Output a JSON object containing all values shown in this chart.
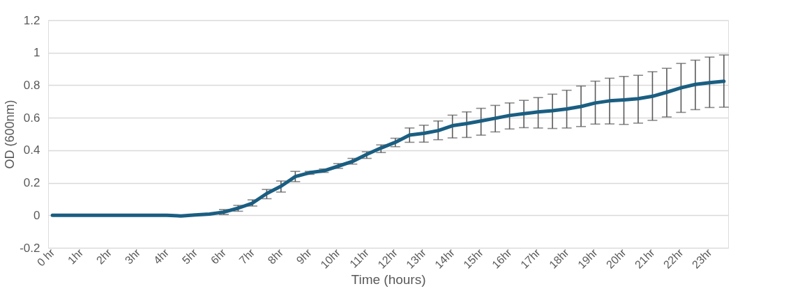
{
  "chart_data": {
    "type": "line",
    "xlabel": "Time (hours)",
    "ylabel": "OD (600nm)",
    "categories": [
      "0 hr",
      null,
      "1hr",
      null,
      "2hr",
      null,
      "3hr",
      null,
      "4hr",
      null,
      "5hr",
      null,
      "6hr",
      null,
      "7hr",
      null,
      "8hr",
      null,
      "9hr",
      null,
      "10hr",
      null,
      "11hr",
      null,
      "12hr",
      null,
      "13hr",
      null,
      "14hr",
      null,
      "15hr",
      null,
      "16hr",
      null,
      "17hr",
      null,
      "18hr",
      null,
      "19hr",
      null,
      "20hr",
      null,
      "21hr",
      null,
      "22hr",
      null,
      "23hr",
      null
    ],
    "series": [
      {
        "color": "#1a5e82",
        "values": [
          0,
          0,
          0,
          0,
          0,
          0,
          0,
          0,
          0,
          -0.004,
          0.002,
          0.008,
          0.02,
          0.044,
          0.075,
          0.134,
          0.179,
          0.238,
          0.262,
          0.274,
          0.302,
          0.331,
          0.375,
          0.414,
          0.449,
          0.494,
          0.504,
          0.521,
          0.551,
          0.564,
          0.58,
          0.597,
          0.614,
          0.625,
          0.636,
          0.643,
          0.654,
          0.669,
          0.691,
          0.704,
          0.71,
          0.717,
          0.732,
          0.757,
          0.784,
          0.805,
          0.816,
          0.824
        ],
        "errors": [
          null,
          null,
          null,
          null,
          null,
          null,
          null,
          null,
          null,
          null,
          null,
          null,
          [
            0.005,
            0.035
          ],
          [
            0.025,
            0.061
          ],
          [
            0.057,
            0.095
          ],
          [
            0.102,
            0.159
          ],
          [
            0.143,
            0.211
          ],
          [
            0.207,
            0.27
          ],
          [
            0.252,
            0.27
          ],
          [
            0.264,
            0.285
          ],
          [
            0.289,
            0.318
          ],
          [
            0.315,
            0.35
          ],
          [
            0.35,
            0.391
          ],
          [
            0.386,
            0.433
          ],
          [
            0.422,
            0.474
          ],
          [
            0.449,
            0.537
          ],
          [
            0.45,
            0.554
          ],
          [
            0.465,
            0.58
          ],
          [
            0.476,
            0.616
          ],
          [
            0.479,
            0.636
          ],
          [
            0.493,
            0.658
          ],
          [
            0.513,
            0.676
          ],
          [
            0.531,
            0.691
          ],
          [
            0.539,
            0.707
          ],
          [
            0.537,
            0.724
          ],
          [
            0.534,
            0.745
          ],
          [
            0.537,
            0.769
          ],
          [
            0.546,
            0.795
          ],
          [
            0.561,
            0.825
          ],
          [
            0.562,
            0.843
          ],
          [
            0.559,
            0.854
          ],
          [
            0.567,
            0.861
          ],
          [
            0.584,
            0.883
          ],
          [
            0.605,
            0.904
          ],
          [
            0.633,
            0.934
          ],
          [
            0.65,
            0.954
          ],
          [
            0.663,
            0.973
          ],
          [
            0.665,
            0.986
          ]
        ]
      }
    ],
    "ylim": [
      -0.2,
      1.2
    ],
    "yticks": [
      -0.2,
      0,
      0.2,
      0.4,
      0.6,
      0.8,
      1,
      1.2
    ],
    "grid": "y",
    "line_style": "solid",
    "marker": "none"
  }
}
